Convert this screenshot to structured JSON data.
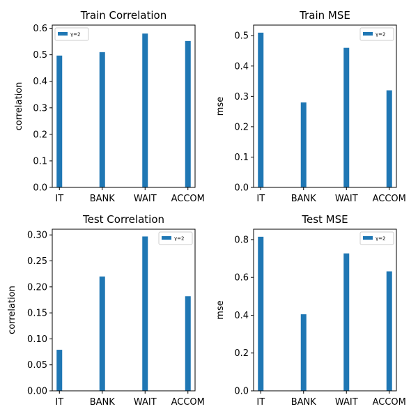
{
  "colors": {
    "bar": "#1f77b4",
    "axis": "#000000",
    "legend_border": "#cccccc"
  },
  "chart_data": [
    {
      "type": "bar",
      "title": "Train Correlation",
      "xlabel": "",
      "ylabel": "correlation",
      "categories": [
        "IT",
        "BANK",
        "WAIT",
        "ACCOM"
      ],
      "series": [
        {
          "name": "γ=2",
          "values": [
            0.497,
            0.51,
            0.58,
            0.552
          ]
        }
      ],
      "ylim": [
        0,
        0.612
      ],
      "yticks": [
        0.0,
        0.1,
        0.2,
        0.3,
        0.4,
        0.5,
        0.6
      ],
      "ytick_labels": [
        "0.0",
        "0.1",
        "0.2",
        "0.3",
        "0.4",
        "0.5",
        "0.6"
      ],
      "legend": "top-left",
      "grid": false
    },
    {
      "type": "bar",
      "title": "Train MSE",
      "xlabel": "",
      "ylabel": "mse",
      "categories": [
        "IT",
        "BANK",
        "WAIT",
        "ACCOM"
      ],
      "series": [
        {
          "name": "γ=2",
          "values": [
            0.51,
            0.28,
            0.46,
            0.32
          ]
        }
      ],
      "ylim": [
        0,
        0.535
      ],
      "yticks": [
        0.0,
        0.1,
        0.2,
        0.3,
        0.4,
        0.5
      ],
      "ytick_labels": [
        "0.0",
        "0.1",
        "0.2",
        "0.3",
        "0.4",
        "0.5"
      ],
      "legend": "top-right",
      "grid": false
    },
    {
      "type": "bar",
      "title": "Test Correlation",
      "xlabel": "",
      "ylabel": "correlation",
      "categories": [
        "IT",
        "BANK",
        "WAIT",
        "ACCOM"
      ],
      "series": [
        {
          "name": "γ=2",
          "values": [
            0.079,
            0.22,
            0.297,
            0.182
          ]
        }
      ],
      "ylim": [
        0,
        0.311
      ],
      "yticks": [
        0.0,
        0.05,
        0.1,
        0.15,
        0.2,
        0.25,
        0.3
      ],
      "ytick_labels": [
        "0.00",
        "0.05",
        "0.10",
        "0.15",
        "0.20",
        "0.25",
        "0.30"
      ],
      "legend": "top-right",
      "grid": false
    },
    {
      "type": "bar",
      "title": "Test MSE",
      "xlabel": "",
      "ylabel": "mse",
      "categories": [
        "IT",
        "BANK",
        "WAIT",
        "ACCOM"
      ],
      "series": [
        {
          "name": "γ=2",
          "values": [
            0.815,
            0.405,
            0.727,
            0.632
          ]
        }
      ],
      "ylim": [
        0,
        0.855
      ],
      "yticks": [
        0.0,
        0.2,
        0.4,
        0.6,
        0.8
      ],
      "ytick_labels": [
        "0.0",
        "0.2",
        "0.4",
        "0.6",
        "0.8"
      ],
      "legend": "top-right",
      "grid": false
    }
  ]
}
